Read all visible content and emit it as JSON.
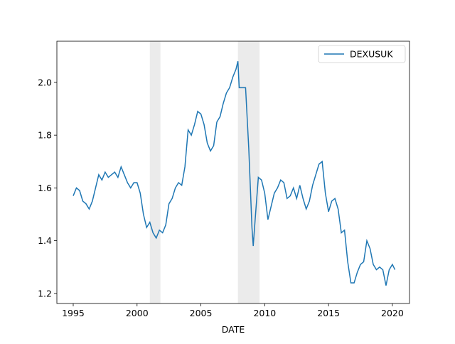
{
  "chart_data": {
    "type": "line",
    "xlabel": "DATE",
    "x": [
      1995.0,
      1995.25,
      1995.5,
      1995.75,
      1996.0,
      1996.25,
      1996.5,
      1996.75,
      1997.0,
      1997.25,
      1997.5,
      1997.75,
      1998.0,
      1998.25,
      1998.5,
      1998.75,
      1999.0,
      1999.25,
      1999.5,
      1999.75,
      2000.0,
      2000.25,
      2000.5,
      2000.75,
      2001.0,
      2001.25,
      2001.5,
      2001.75,
      2002.0,
      2002.25,
      2002.5,
      2002.75,
      2003.0,
      2003.25,
      2003.5,
      2003.75,
      2004.0,
      2004.25,
      2004.5,
      2004.75,
      2005.0,
      2005.25,
      2005.5,
      2005.75,
      2006.0,
      2006.25,
      2006.5,
      2006.75,
      2007.0,
      2007.25,
      2007.5,
      2007.75,
      2007.9,
      2008.0,
      2008.25,
      2008.5,
      2008.75,
      2009.0,
      2009.1,
      2009.25,
      2009.5,
      2009.75,
      2010.0,
      2010.25,
      2010.5,
      2010.75,
      2011.0,
      2011.25,
      2011.5,
      2011.75,
      2012.0,
      2012.25,
      2012.5,
      2012.75,
      2013.0,
      2013.25,
      2013.5,
      2013.75,
      2014.0,
      2014.25,
      2014.5,
      2014.75,
      2015.0,
      2015.25,
      2015.5,
      2015.75,
      2016.0,
      2016.25,
      2016.5,
      2016.75,
      2017.0,
      2017.25,
      2017.5,
      2017.75,
      2018.0,
      2018.25,
      2018.5,
      2018.75,
      2019.0,
      2019.25,
      2019.5,
      2019.75,
      2020.0,
      2020.2
    ],
    "series": [
      {
        "name": "DEXUSUK",
        "color": "#1f77b4",
        "values": [
          1.57,
          1.6,
          1.59,
          1.55,
          1.54,
          1.52,
          1.55,
          1.6,
          1.65,
          1.63,
          1.66,
          1.64,
          1.65,
          1.66,
          1.64,
          1.68,
          1.65,
          1.62,
          1.6,
          1.62,
          1.62,
          1.58,
          1.5,
          1.45,
          1.47,
          1.43,
          1.41,
          1.44,
          1.43,
          1.46,
          1.54,
          1.56,
          1.6,
          1.62,
          1.61,
          1.68,
          1.82,
          1.8,
          1.84,
          1.89,
          1.88,
          1.84,
          1.77,
          1.74,
          1.76,
          1.85,
          1.87,
          1.92,
          1.96,
          1.98,
          2.02,
          2.05,
          2.08,
          1.98,
          1.98,
          1.98,
          1.75,
          1.45,
          1.38,
          1.48,
          1.64,
          1.63,
          1.58,
          1.48,
          1.53,
          1.58,
          1.6,
          1.63,
          1.62,
          1.56,
          1.57,
          1.6,
          1.56,
          1.61,
          1.56,
          1.52,
          1.55,
          1.61,
          1.65,
          1.69,
          1.7,
          1.58,
          1.51,
          1.55,
          1.56,
          1.52,
          1.43,
          1.44,
          1.32,
          1.24,
          1.24,
          1.28,
          1.31,
          1.32,
          1.4,
          1.37,
          1.31,
          1.29,
          1.3,
          1.29,
          1.23,
          1.29,
          1.31,
          1.29
        ]
      }
    ],
    "shaded_regions": [
      [
        2001.0,
        2001.83
      ],
      [
        2007.9,
        2009.6
      ]
    ],
    "shade_color": "#ebebeb",
    "xlim": [
      1993.72,
      2021.34
    ],
    "xticks": [
      1995,
      2000,
      2005,
      2010,
      2015,
      2020
    ],
    "ylim": [
      1.162,
      2.156
    ],
    "yticks": [
      1.2,
      1.4,
      1.6,
      1.8,
      {
        "value": 2,
        "label": "2.0"
      }
    ],
    "legend": "upper right"
  }
}
